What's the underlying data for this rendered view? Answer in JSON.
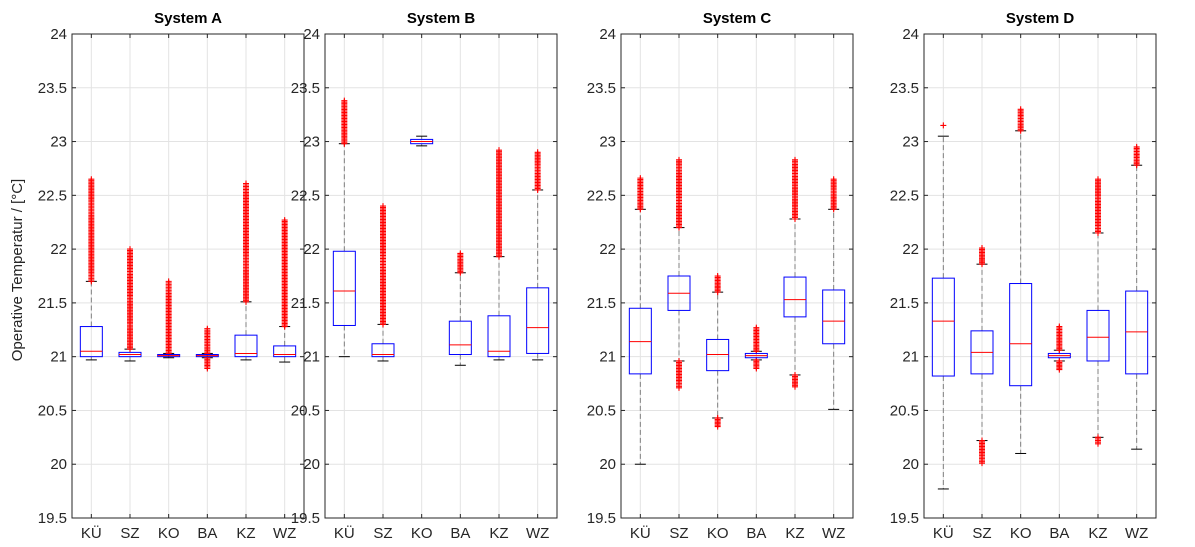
{
  "chart_data": {
    "type": "boxplot",
    "ylabel": "Operative Temperatur / [°C]",
    "ylim": [
      19.5,
      24
    ],
    "yticks": [
      "19.5",
      "20",
      "20.5",
      "21",
      "21.5",
      "22",
      "22.5",
      "23",
      "23.5",
      "24"
    ],
    "categories": [
      "KÜ",
      "SZ",
      "KO",
      "BA",
      "KZ",
      "WZ"
    ],
    "grid": true,
    "colors": {
      "box": "#0000ff",
      "median": "#ff0000",
      "whisker": "#808080",
      "outlier": "#ff0000",
      "cap": "#000000"
    },
    "panels": [
      {
        "title": "System A",
        "boxes": [
          {
            "category": "KÜ",
            "whisker_low": 20.97,
            "q1": 21.0,
            "median": 21.05,
            "q3": 21.28,
            "whisker_high": 21.7,
            "outliers_high": [
              21.7,
              22.65
            ],
            "outliers_low": []
          },
          {
            "category": "SZ",
            "whisker_low": 20.96,
            "q1": 21.0,
            "median": 21.02,
            "q3": 21.04,
            "whisker_high": 21.07,
            "outliers_high": [
              21.07,
              22.0
            ],
            "outliers_low": []
          },
          {
            "category": "KO",
            "whisker_low": 20.99,
            "q1": 21.0,
            "median": 21.01,
            "q3": 21.02,
            "whisker_high": 21.03,
            "outliers_high": [
              21.03,
              21.7
            ],
            "outliers_low": []
          },
          {
            "category": "BA",
            "whisker_low": 20.99,
            "q1": 21.0,
            "median": 21.01,
            "q3": 21.02,
            "whisker_high": 21.03,
            "outliers_high": [
              21.03,
              21.26
            ],
            "outliers_low": [
              20.89,
              20.99
            ]
          },
          {
            "category": "KZ",
            "whisker_low": 20.97,
            "q1": 21.0,
            "median": 21.03,
            "q3": 21.2,
            "whisker_high": 21.51,
            "outliers_high": [
              21.51,
              22.61
            ],
            "outliers_low": []
          },
          {
            "category": "WZ",
            "whisker_low": 20.95,
            "q1": 21.0,
            "median": 21.02,
            "q3": 21.1,
            "whisker_high": 21.28,
            "outliers_high": [
              21.28,
              22.27
            ],
            "outliers_low": []
          }
        ]
      },
      {
        "title": "System B",
        "boxes": [
          {
            "category": "KÜ",
            "whisker_low": 21.0,
            "q1": 21.29,
            "median": 21.61,
            "q3": 21.98,
            "whisker_high": 22.98,
            "outliers_high": [
              22.98,
              23.38
            ],
            "outliers_low": []
          },
          {
            "category": "SZ",
            "whisker_low": 20.96,
            "q1": 21.0,
            "median": 21.02,
            "q3": 21.12,
            "whisker_high": 21.3,
            "outliers_high": [
              21.3,
              22.4
            ],
            "outliers_low": []
          },
          {
            "category": "KO",
            "whisker_low": 22.96,
            "q1": 22.98,
            "median": 23.0,
            "q3": 23.02,
            "whisker_high": 23.05,
            "outliers_high": [],
            "outliers_low": []
          },
          {
            "category": "BA",
            "whisker_low": 20.92,
            "q1": 21.02,
            "median": 21.11,
            "q3": 21.33,
            "whisker_high": 21.78,
            "outliers_high": [
              21.78,
              21.96
            ],
            "outliers_low": []
          },
          {
            "category": "KZ",
            "whisker_low": 20.97,
            "q1": 21.0,
            "median": 21.05,
            "q3": 21.38,
            "whisker_high": 21.93,
            "outliers_high": [
              21.93,
              22.92
            ],
            "outliers_low": []
          },
          {
            "category": "WZ",
            "whisker_low": 20.97,
            "q1": 21.03,
            "median": 21.27,
            "q3": 21.64,
            "whisker_high": 22.55,
            "outliers_high": [
              22.55,
              22.9
            ],
            "outliers_low": []
          }
        ]
      },
      {
        "title": "System C",
        "boxes": [
          {
            "category": "KÜ",
            "whisker_low": 20.0,
            "q1": 20.84,
            "median": 21.14,
            "q3": 21.45,
            "whisker_high": 22.37,
            "outliers_high": [
              22.37,
              22.66
            ],
            "outliers_low": []
          },
          {
            "category": "SZ",
            "whisker_low": 20.96,
            "q1": 21.43,
            "median": 21.59,
            "q3": 21.75,
            "whisker_high": 22.2,
            "outliers_high": [
              22.2,
              22.83
            ],
            "outliers_low": [
              20.71,
              20.96
            ]
          },
          {
            "category": "KO",
            "whisker_low": 20.43,
            "q1": 20.87,
            "median": 21.02,
            "q3": 21.16,
            "whisker_high": 21.6,
            "outliers_high": [
              21.6,
              21.75
            ],
            "outliers_low": [
              20.35,
              20.43
            ]
          },
          {
            "category": "BA",
            "whisker_low": 20.97,
            "q1": 20.99,
            "median": 21.01,
            "q3": 21.03,
            "whisker_high": 21.05,
            "outliers_high": [
              21.05,
              21.27
            ],
            "outliers_low": [
              20.89,
              20.97
            ]
          },
          {
            "category": "KZ",
            "whisker_low": 20.83,
            "q1": 21.37,
            "median": 21.53,
            "q3": 21.74,
            "whisker_high": 22.28,
            "outliers_high": [
              22.28,
              22.83
            ],
            "outliers_low": [
              20.72,
              20.83
            ]
          },
          {
            "category": "WZ",
            "whisker_low": 20.51,
            "q1": 21.12,
            "median": 21.33,
            "q3": 21.62,
            "whisker_high": 22.37,
            "outliers_high": [
              22.37,
              22.65
            ],
            "outliers_low": []
          }
        ]
      },
      {
        "title": "System D",
        "boxes": [
          {
            "category": "KÜ",
            "whisker_low": 19.77,
            "q1": 20.82,
            "median": 21.33,
            "q3": 21.73,
            "whisker_high": 23.05,
            "outliers_high": [
              23.15
            ],
            "outliers_low": []
          },
          {
            "category": "SZ",
            "whisker_low": 20.22,
            "q1": 20.84,
            "median": 21.04,
            "q3": 21.24,
            "whisker_high": 21.86,
            "outliers_high": [
              21.86,
              22.01
            ],
            "outliers_low": [
              20.01,
              20.22
            ]
          },
          {
            "category": "KO",
            "whisker_low": 20.1,
            "q1": 20.73,
            "median": 21.12,
            "q3": 21.68,
            "whisker_high": 23.1,
            "outliers_high": [
              23.1,
              23.3
            ],
            "outliers_low": []
          },
          {
            "category": "BA",
            "whisker_low": 20.96,
            "q1": 20.99,
            "median": 21.01,
            "q3": 21.03,
            "whisker_high": 21.06,
            "outliers_high": [
              21.06,
              21.28
            ],
            "outliers_low": [
              20.88,
              20.96
            ]
          },
          {
            "category": "KZ",
            "whisker_low": 20.25,
            "q1": 20.96,
            "median": 21.18,
            "q3": 21.43,
            "whisker_high": 22.15,
            "outliers_high": [
              22.15,
              22.65
            ],
            "outliers_low": [
              20.19,
              20.25
            ]
          },
          {
            "category": "WZ",
            "whisker_low": 20.14,
            "q1": 20.84,
            "median": 21.23,
            "q3": 21.61,
            "whisker_high": 22.78,
            "outliers_high": [
              22.78,
              22.95
            ],
            "outliers_low": []
          }
        ]
      }
    ]
  }
}
